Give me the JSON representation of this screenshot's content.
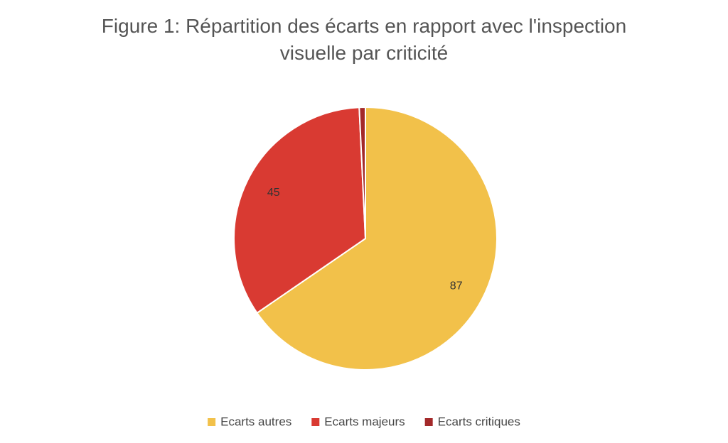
{
  "chart_data": {
    "type": "pie",
    "title": "Figure 1: Répartition des écarts en rapport avec l'inspection visuelle par criticité",
    "categories": [
      "Ecarts autres",
      "Ecarts majeurs",
      "Ecarts critiques"
    ],
    "values": [
      87,
      45,
      1
    ],
    "colors": [
      "#f2c14a",
      "#d93a32",
      "#a3292a"
    ],
    "value_labels": [
      "87",
      "45",
      null
    ],
    "legend": "bottom"
  }
}
